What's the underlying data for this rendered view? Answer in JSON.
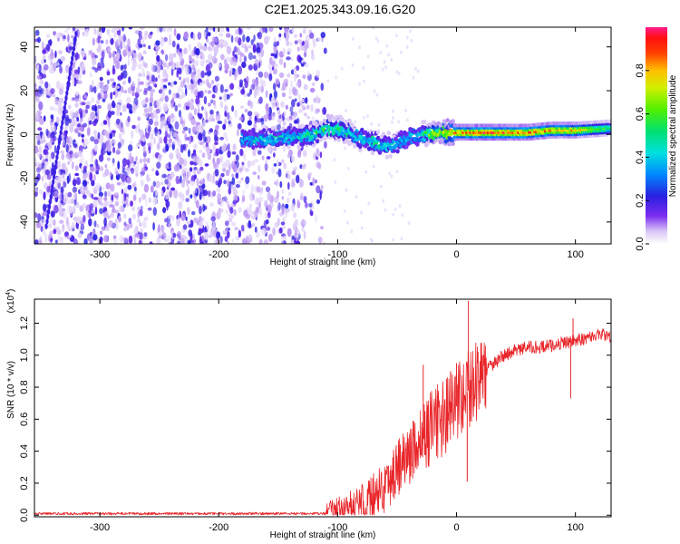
{
  "title": "C2E1.2025.343.09.16.G20",
  "chart_data": [
    {
      "type": "heatmap",
      "xlabel": "Height of straight line (km)",
      "ylabel": "Frequency (Hz)",
      "xlim": [
        -355,
        130
      ],
      "ylim": [
        -50,
        49
      ],
      "xticks": [
        -300,
        -200,
        -100,
        0,
        100
      ],
      "yticks": [
        -40,
        -20,
        0,
        20,
        40
      ],
      "colorbar": {
        "label": "Normalized spectral amplitude",
        "range": [
          0,
          1
        ],
        "ticks": [
          "0.0",
          "0.2",
          "0.4",
          "0.6",
          "0.8"
        ],
        "tick_values": [
          0.0,
          0.2,
          0.4,
          0.6,
          0.8
        ]
      },
      "ridge": {
        "x": [
          -180,
          -160,
          -140,
          -120,
          -110,
          -100,
          -90,
          -80,
          -70,
          -60,
          -50,
          -40,
          -30,
          -20,
          -10,
          0,
          20,
          40,
          60,
          80,
          100,
          130
        ],
        "y": [
          -2,
          -2,
          -1,
          0,
          3,
          3,
          1,
          -2,
          -3,
          -5,
          -4,
          -1,
          0,
          1,
          1,
          1,
          1,
          1,
          1,
          2,
          2,
          3
        ],
        "amplitude": [
          0.4,
          0.45,
          0.45,
          0.5,
          0.6,
          0.55,
          0.5,
          0.45,
          0.5,
          0.5,
          0.45,
          0.4,
          0.45,
          0.7,
          0.8,
          0.85,
          0.95,
          0.9,
          0.9,
          0.85,
          0.8,
          0.55
        ]
      }
    },
    {
      "type": "line",
      "xlabel": "Height of straight line (km)",
      "ylabel": "SNR (10 * v/v)",
      "scale_label": "(x10",
      "scale_exponent": "4",
      "xlim": [
        -355,
        130
      ],
      "ylim": [
        -0.01,
        1.35
      ],
      "xticks": [
        -300,
        -200,
        -100,
        0,
        100
      ],
      "yticks": [
        "0.0",
        "0.2",
        "0.4",
        "0.6",
        "0.8",
        "1.0",
        "1.2"
      ],
      "ytick_values": [
        0.0,
        0.2,
        0.4,
        0.6,
        0.8,
        1.0,
        1.2
      ],
      "color": "#e8262a",
      "envelope": {
        "x": [
          -355,
          -200,
          -110,
          -100,
          -90,
          -80,
          -70,
          -60,
          -50,
          -40,
          -30,
          -20,
          -10,
          0,
          10,
          20,
          30,
          40,
          50,
          60,
          70,
          80,
          90,
          100,
          110,
          120,
          130
        ],
        "y": [
          0.01,
          0.01,
          0.01,
          0.02,
          0.04,
          0.08,
          0.12,
          0.18,
          0.3,
          0.38,
          0.46,
          0.56,
          0.62,
          0.68,
          0.78,
          0.87,
          0.94,
          1.0,
          1.03,
          1.05,
          1.05,
          1.06,
          1.08,
          1.09,
          1.11,
          1.13,
          1.12
        ]
      },
      "spikes": [
        {
          "x": 10,
          "y": 1.34
        },
        {
          "x": 9,
          "y": 0.21
        },
        {
          "x": -28,
          "y": 0.94
        },
        {
          "x": 98,
          "y": 1.23
        },
        {
          "x": 96,
          "y": 0.73
        },
        {
          "x": 0,
          "y": 0.95
        },
        {
          "x": -5,
          "y": 0.9
        }
      ]
    }
  ]
}
